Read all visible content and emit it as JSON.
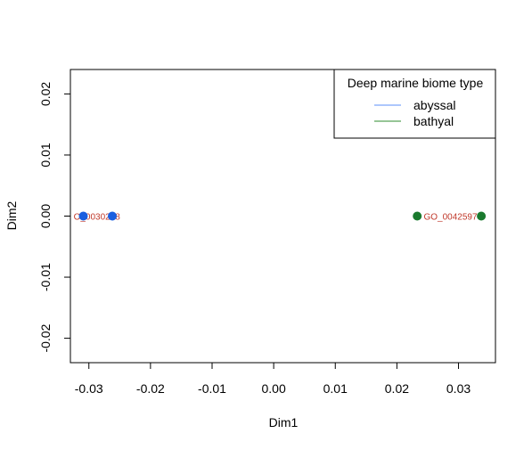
{
  "chart_data": {
    "type": "scatter",
    "xlabel": "Dim1",
    "ylabel": "Dim2",
    "xlim": [
      -0.033,
      0.036
    ],
    "ylim": [
      -0.024,
      0.024
    ],
    "x_ticks": [
      -0.03,
      -0.02,
      -0.01,
      0.0,
      0.01,
      0.02,
      0.03
    ],
    "x_tick_labels": [
      "-0.03",
      "-0.02",
      "-0.01",
      "0.00",
      "0.01",
      "0.02",
      "0.03"
    ],
    "y_ticks": [
      -0.02,
      -0.01,
      0.0,
      0.01,
      0.02
    ],
    "y_tick_labels": [
      "-0.02",
      "-0.01",
      "0.00",
      "0.01",
      "0.02"
    ],
    "grid": false,
    "legend": {
      "title": "Deep marine biome type",
      "placement": "top-right",
      "entries": [
        {
          "label": "abyssal",
          "color": "#5b8ff9"
        },
        {
          "label": "bathyal",
          "color": "#2e8b2e"
        }
      ]
    },
    "series": [
      {
        "name": "abyssal",
        "color": "#1a5fe0",
        "points": [
          {
            "x": -0.0309,
            "y": 0.0
          },
          {
            "x": -0.0262,
            "y": 0.0
          }
        ]
      },
      {
        "name": "bathyal",
        "color": "#1a7a2e",
        "points": [
          {
            "x": 0.0233,
            "y": 0.0
          },
          {
            "x": 0.0337,
            "y": 0.0
          }
        ]
      }
    ],
    "annotations": [
      {
        "text": "O_0030288",
        "x": -0.0287,
        "y": 0.0,
        "color": "#c0392b"
      },
      {
        "text": "GO_0042597",
        "x": 0.0287,
        "y": 0.0,
        "color": "#c0392b"
      }
    ]
  }
}
